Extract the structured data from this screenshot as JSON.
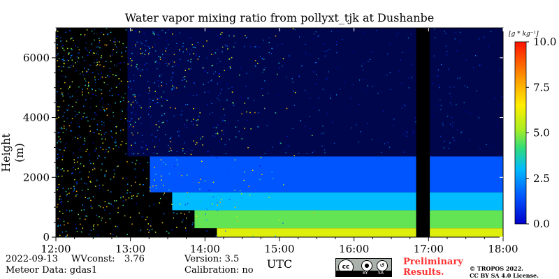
{
  "chart_data": {
    "type": "heatmap",
    "title": "Water vapor mixing ratio from pollyxt_tjk at Dushanbe",
    "xlabel": "UTC",
    "ylabel": "Height (m)",
    "x_ticks": [
      "12:00",
      "13:00",
      "14:00",
      "15:00",
      "16:00",
      "17:00",
      "18:00"
    ],
    "x_range": [
      "12:00",
      "18:00"
    ],
    "y_ticks": [
      0,
      2000,
      4000,
      6000
    ],
    "ylim": [
      0,
      7000
    ],
    "colorbar": {
      "unit": "[g * kg⁻¹]",
      "ticks": [
        "0.0",
        "2.5",
        "5.0",
        "7.5",
        "10.0"
      ],
      "range": [
        0,
        10
      ],
      "colormap": "jet"
    },
    "no_data_interval": [
      "16:50",
      "17:01"
    ],
    "profile_layers": [
      {
        "height_top": 300,
        "value": 6.0
      },
      {
        "height_top": 900,
        "value": 4.6
      },
      {
        "height_top": 1500,
        "value": 3.0
      },
      {
        "height_top": 2700,
        "value": 1.5
      },
      {
        "height_top": 7000,
        "value": 0.3
      }
    ],
    "colors": {
      "no_data": "#000000",
      "background": "#000000"
    }
  },
  "meta": {
    "date": "2022-09-13",
    "wvconst_label": "WVconst:",
    "wvconst_value": "3.76",
    "meteor_data": "Meteor Data: gdas1",
    "version": "Version: 3.5",
    "calibration": "Calibration: no"
  },
  "footer": {
    "prelim_line1": "Preliminary",
    "prelim_line2": "Results.",
    "copyright_line1": "© TROPOS 2022.",
    "copyright_line2": "CC BY SA 4.0 License.",
    "license_badge": {
      "cc": "cc",
      "by": "BY",
      "sa": "SA"
    }
  }
}
